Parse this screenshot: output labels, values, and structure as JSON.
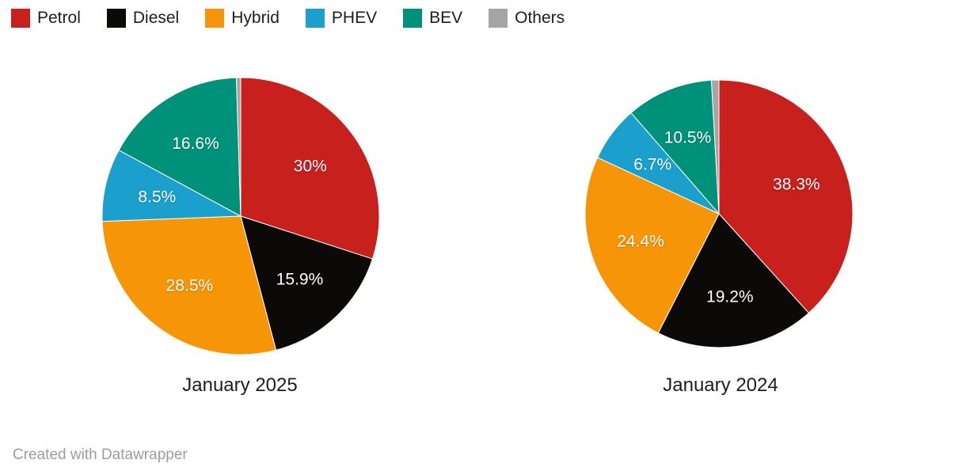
{
  "legend": {
    "items": [
      {
        "label": "Petrol",
        "color": "#c7201d"
      },
      {
        "label": "Diesel",
        "color": "#0b0a08"
      },
      {
        "label": "Hybrid",
        "color": "#f79508"
      },
      {
        "label": "PHEV",
        "color": "#1ba0cd"
      },
      {
        "label": "BEV",
        "color": "#00917a"
      },
      {
        "label": "Others",
        "color": "#a5a5a5"
      }
    ]
  },
  "chart_data": [
    {
      "type": "pie",
      "title": "January 2025",
      "unit": "%",
      "start_angle_deg": 0,
      "direction": "clockwise",
      "slices": [
        {
          "label": "Petrol",
          "value": 30.0,
          "display": "30%"
        },
        {
          "label": "Diesel",
          "value": 15.9,
          "display": "15.9%"
        },
        {
          "label": "Hybrid",
          "value": 28.5,
          "display": "28.5%"
        },
        {
          "label": "PHEV",
          "value": 8.5,
          "display": "8.5%"
        },
        {
          "label": "BEV",
          "value": 16.6,
          "display": "16.6%"
        },
        {
          "label": "Others",
          "value": 0.5,
          "display": ""
        }
      ]
    },
    {
      "type": "pie",
      "title": "January 2024",
      "unit": "%",
      "start_angle_deg": 0,
      "direction": "clockwise",
      "slices": [
        {
          "label": "Petrol",
          "value": 38.3,
          "display": "38.3%"
        },
        {
          "label": "Diesel",
          "value": 19.2,
          "display": "19.2%"
        },
        {
          "label": "Hybrid",
          "value": 24.4,
          "display": "24.4%"
        },
        {
          "label": "PHEV",
          "value": 6.7,
          "display": "6.7%"
        },
        {
          "label": "BEV",
          "value": 10.5,
          "display": "10.5%"
        },
        {
          "label": "Others",
          "value": 0.9,
          "display": ""
        }
      ]
    }
  ],
  "footer": {
    "credit": "Created with Datawrapper"
  },
  "colors": {
    "slice_label_text": "#ffffff",
    "title_text": "#1d1d1d",
    "legend_text": "#1d1d1d",
    "footer_text": "#9c9c9c",
    "background": "#ffffff"
  }
}
